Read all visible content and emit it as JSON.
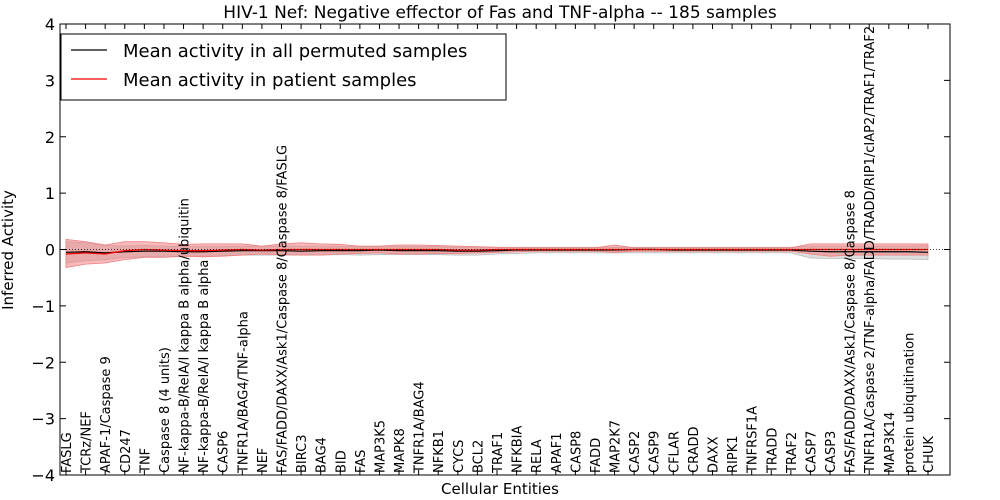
{
  "chart_data": {
    "type": "line",
    "title": "HIV-1 Nef: Negative effector of Fas and TNF-alpha -- 185 samples",
    "xlabel": "Cellular Entities",
    "ylabel": "Inferred Activity",
    "ylim": [
      -4,
      4
    ],
    "yticks": [
      -4,
      -3,
      -2,
      -1,
      0,
      1,
      2,
      3,
      4
    ],
    "ytick_labels": [
      "−4",
      "−3",
      "−2",
      "−1",
      "0",
      "1",
      "2",
      "3",
      "4"
    ],
    "grid": false,
    "legend_position": "top-left",
    "categories": [
      "FASLG",
      "TCRz/NEF",
      "APAF-1/Caspase 9",
      "CD247",
      "TNF",
      "Caspase 8 (4 units)",
      "NF-kappa-B/RelA/I kappa B alpha/ubiquitin",
      "NF-kappa-B/RelA/I kappa B alpha",
      "CASP6",
      "TNFR1A/BAG4/TNF-alpha",
      "NEF",
      "FAS/FADD/DAXX/Ask1/Caspase 8/Caspase 8/FASLG",
      "BIRC3",
      "BAG4",
      "BID",
      "FAS",
      "MAP3K5",
      "MAPK8",
      "TNFR1A/BAG4",
      "NFKB1",
      "CYCS",
      "BCL2",
      "TRAF1",
      "NFKBIA",
      "RELA",
      "APAF1",
      "CASP8",
      "FADD",
      "MAP2K7",
      "CASP2",
      "CASP9",
      "CFLAR",
      "CRADD",
      "DAXX",
      "RIPK1",
      "TNFRSF1A",
      "TRADD",
      "TRAF2",
      "CASP7",
      "CASP3",
      "FAS/FADD/DAXX/Ask1/Caspase 8/Caspase 8",
      "TNFR1A/Caspase 2/TNF-alpha/FADD/TRADD/RIP1/cIAP2/TRAF1/TRAF2",
      "MAP3K14",
      "protein ubiquitination",
      "CHUK"
    ],
    "series": [
      {
        "name": "Mean activity in all permuted samples",
        "color": "#000000",
        "band_color": "#bdbdbd",
        "values": [
          -0.05,
          -0.04,
          -0.06,
          -0.04,
          -0.03,
          -0.03,
          -0.04,
          -0.04,
          -0.03,
          -0.02,
          -0.02,
          -0.02,
          -0.03,
          -0.02,
          -0.02,
          -0.02,
          -0.01,
          -0.02,
          -0.02,
          -0.02,
          -0.03,
          -0.03,
          -0.02,
          -0.01,
          -0.01,
          -0.01,
          -0.01,
          -0.01,
          -0.01,
          0.0,
          0.0,
          -0.01,
          -0.01,
          -0.01,
          -0.01,
          -0.01,
          -0.01,
          -0.01,
          -0.03,
          -0.04,
          -0.04,
          -0.04,
          -0.04,
          -0.04,
          -0.05
        ],
        "band_upper": [
          0.14,
          0.12,
          0.07,
          0.06,
          0.07,
          0.06,
          0.05,
          0.05,
          0.05,
          0.06,
          0.06,
          0.06,
          0.06,
          0.06,
          0.05,
          0.05,
          0.05,
          0.05,
          0.05,
          0.05,
          0.04,
          0.04,
          0.04,
          0.04,
          0.04,
          0.04,
          0.04,
          0.04,
          0.04,
          0.04,
          0.04,
          0.04,
          0.04,
          0.04,
          0.04,
          0.04,
          0.04,
          0.04,
          0.06,
          0.06,
          0.06,
          0.06,
          0.06,
          0.06,
          0.07
        ],
        "band_lower": [
          -0.24,
          -0.2,
          -0.18,
          -0.14,
          -0.13,
          -0.12,
          -0.12,
          -0.12,
          -0.11,
          -0.1,
          -0.1,
          -0.1,
          -0.1,
          -0.1,
          -0.09,
          -0.1,
          -0.09,
          -0.09,
          -0.09,
          -0.09,
          -0.1,
          -0.1,
          -0.08,
          -0.07,
          -0.06,
          -0.06,
          -0.06,
          -0.06,
          -0.06,
          -0.06,
          -0.06,
          -0.06,
          -0.06,
          -0.06,
          -0.06,
          -0.06,
          -0.06,
          -0.06,
          -0.15,
          -0.16,
          -0.16,
          -0.16,
          -0.17,
          -0.17,
          -0.18
        ]
      },
      {
        "name": "Mean activity in patient samples",
        "color": "#ff0000",
        "band_color": "#f08080",
        "values": [
          -0.08,
          -0.06,
          -0.08,
          -0.02,
          0.0,
          -0.01,
          -0.02,
          -0.02,
          -0.01,
          0.0,
          -0.01,
          0.0,
          0.0,
          0.0,
          0.0,
          0.0,
          0.0,
          0.0,
          0.0,
          0.0,
          -0.01,
          -0.01,
          0.0,
          0.0,
          0.0,
          0.0,
          0.0,
          0.0,
          0.0,
          0.0,
          0.0,
          0.0,
          0.0,
          0.0,
          0.0,
          0.0,
          0.0,
          0.0,
          0.0,
          0.0,
          0.0,
          0.0,
          0.0,
          0.0,
          0.0
        ],
        "band_upper": [
          0.18,
          0.14,
          0.08,
          0.14,
          0.14,
          0.12,
          0.09,
          0.1,
          0.1,
          0.1,
          0.06,
          0.1,
          0.12,
          0.1,
          0.09,
          0.06,
          0.06,
          0.08,
          0.08,
          0.07,
          0.06,
          0.05,
          0.04,
          0.03,
          0.03,
          0.03,
          0.03,
          0.03,
          0.08,
          0.03,
          0.03,
          0.03,
          0.03,
          0.03,
          0.03,
          0.03,
          0.03,
          0.03,
          0.1,
          0.1,
          0.1,
          0.1,
          0.1,
          0.1,
          0.1
        ],
        "band_lower": [
          -0.32,
          -0.26,
          -0.24,
          -0.18,
          -0.14,
          -0.14,
          -0.12,
          -0.13,
          -0.12,
          -0.1,
          -0.08,
          -0.09,
          -0.1,
          -0.1,
          -0.08,
          -0.07,
          -0.06,
          -0.08,
          -0.08,
          -0.07,
          -0.07,
          -0.06,
          -0.05,
          -0.04,
          -0.03,
          -0.03,
          -0.03,
          -0.03,
          -0.05,
          -0.03,
          -0.03,
          -0.03,
          -0.03,
          -0.03,
          -0.03,
          -0.03,
          -0.03,
          -0.03,
          -0.08,
          -0.12,
          -0.1,
          -0.1,
          -0.1,
          -0.1,
          -0.1
        ]
      }
    ],
    "reference_lines": [
      0
    ]
  }
}
